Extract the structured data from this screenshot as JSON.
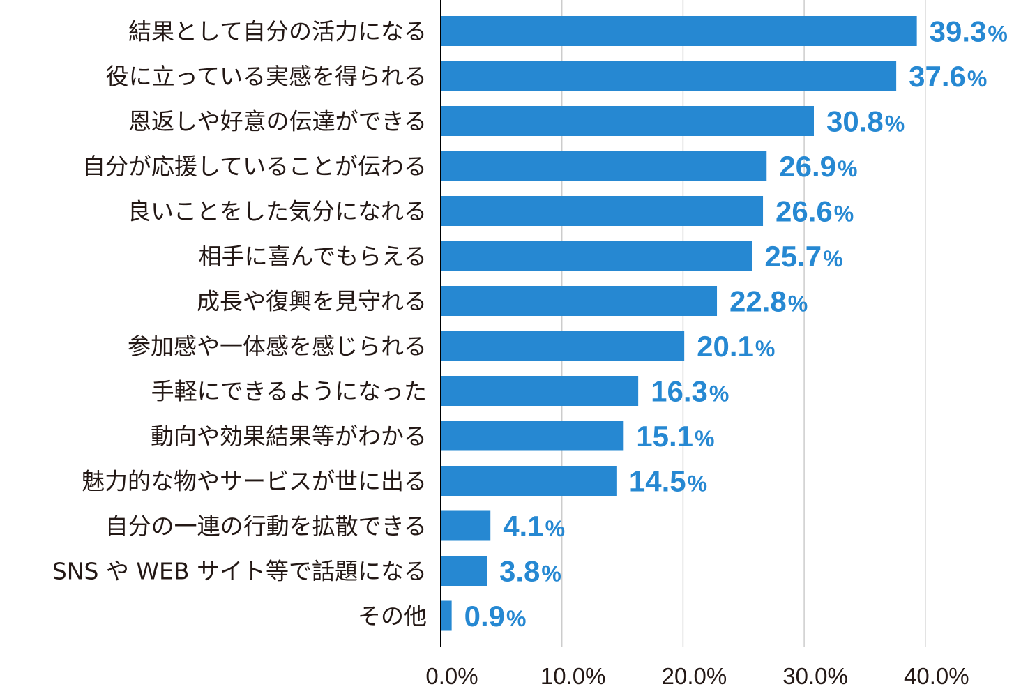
{
  "chart_data": {
    "type": "bar",
    "orientation": "horizontal",
    "categories": [
      "結果として自分の活力になる",
      "役に立っている実感を得られる",
      "恩返しや好意の伝達ができる",
      "自分が応援していることが伝わる",
      "良いことをした気分になれる",
      "相手に喜んでもらえる",
      "成長や復興を見守れる",
      "参加感や一体感を感じられる",
      "手軽にできるようになった",
      "動向や効果結果等がわかる",
      "魅力的な物やサービスが世に出る",
      "自分の一連の行動を拡散できる",
      "SNS や WEB サイト等で話題になる",
      "その他"
    ],
    "values": [
      39.3,
      37.6,
      30.8,
      26.9,
      26.6,
      25.7,
      22.8,
      20.1,
      16.3,
      15.1,
      14.5,
      4.1,
      3.8,
      0.9
    ],
    "value_labels": [
      "39.3",
      "37.6",
      "30.8",
      "26.9",
      "26.6",
      "25.7",
      "22.8",
      "20.1",
      "16.3",
      "15.1",
      "14.5",
      "4.1",
      "3.8",
      "0.9"
    ],
    "value_unit": "%",
    "xticks": [
      "0.0%",
      "10.0%",
      "20.0%",
      "30.0%",
      "40.0%"
    ],
    "xlim": [
      0,
      40
    ],
    "grid": true,
    "legend": false,
    "colors": {
      "bar": "#2688d2",
      "value_label": "#2688d2",
      "text": "#231815",
      "grid": "#cccccc",
      "axis": "#000000"
    }
  }
}
